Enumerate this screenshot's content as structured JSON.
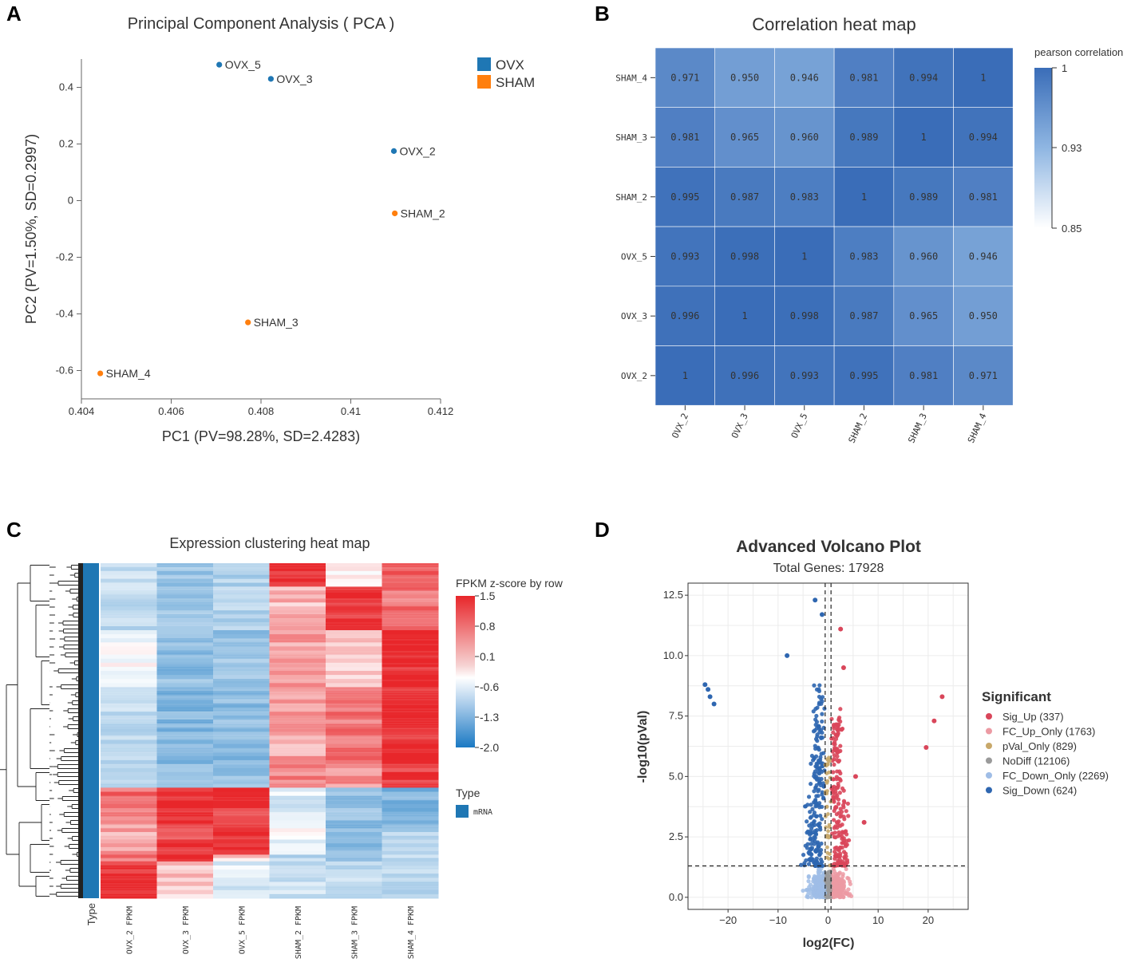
{
  "panels": {
    "a_letter": "A",
    "b_letter": "B",
    "c_letter": "C",
    "d_letter": "D"
  },
  "chart_data": [
    {
      "id": "pca",
      "type": "scatter",
      "title": "Principal Component Analysis ( PCA )",
      "xlabel": "PC1 (PV=98.28%, SD=2.4283)",
      "ylabel": "PC2 (PV=1.50%, SD=0.2997)",
      "xlim": [
        0.404,
        0.412
      ],
      "ylim": [
        -0.7,
        0.5
      ],
      "xticks": [
        0.404,
        0.406,
        0.408,
        0.41,
        0.412
      ],
      "xtick_labels": [
        "0.404",
        "0.406",
        "0.408",
        "0.41",
        "0.412"
      ],
      "yticks": [
        0.4,
        0.2,
        0,
        -0.2,
        -0.4,
        -0.6
      ],
      "ytick_labels": [
        "0.4",
        "0.2",
        "0",
        "-0.2",
        "-0.4",
        "-0.6"
      ],
      "legend": [
        {
          "name": "OVX",
          "color": "#1f77b4"
        },
        {
          "name": "SHAM",
          "color": "#ff7f0e"
        }
      ],
      "points": [
        {
          "label": "OVX_5",
          "group": "OVX",
          "x": 0.40707,
          "y": 0.48
        },
        {
          "label": "OVX_3",
          "group": "OVX",
          "x": 0.40822,
          "y": 0.43
        },
        {
          "label": "OVX_2",
          "group": "OVX",
          "x": 0.41096,
          "y": 0.175
        },
        {
          "label": "SHAM_2",
          "group": "SHAM",
          "x": 0.41098,
          "y": -0.045
        },
        {
          "label": "SHAM_3",
          "group": "SHAM",
          "x": 0.40771,
          "y": -0.43
        },
        {
          "label": "SHAM_4",
          "group": "SHAM",
          "x": 0.40442,
          "y": -0.61
        }
      ]
    },
    {
      "id": "correlation",
      "type": "heatmap",
      "title": "Correlation heat map",
      "colorbar_title": "pearson correlation",
      "colorbar_ticks": [
        "1",
        "0.93",
        "0.85"
      ],
      "colorbar_range": [
        0.85,
        1
      ],
      "x_labels": [
        "OVX_2",
        "OVX_3",
        "OVX_5",
        "SHAM_2",
        "SHAM_3",
        "SHAM_4"
      ],
      "y_labels_top_to_bottom": [
        "SHAM_4",
        "SHAM_3",
        "SHAM_2",
        "OVX_5",
        "OVX_3",
        "OVX_2"
      ],
      "cells": [
        [
          "0.971",
          "0.950",
          "0.946",
          "0.981",
          "0.994",
          "1"
        ],
        [
          "0.981",
          "0.965",
          "0.960",
          "0.989",
          "1",
          "0.994"
        ],
        [
          "0.995",
          "0.987",
          "0.983",
          "1",
          "0.989",
          "0.981"
        ],
        [
          "0.993",
          "0.998",
          "1",
          "0.983",
          "0.960",
          "0.946"
        ],
        [
          "0.996",
          "1",
          "0.998",
          "0.987",
          "0.965",
          "0.950"
        ],
        [
          "1",
          "0.996",
          "0.993",
          "0.995",
          "0.981",
          "0.971"
        ]
      ]
    },
    {
      "id": "clustering",
      "type": "heatmap",
      "title": "Expression clustering heat map",
      "colorbar_title": "FPKM z-score by row",
      "colorbar_ticks": [
        "1.5",
        "0.8",
        "0.1",
        "-0.6",
        "-1.3",
        "-2.0"
      ],
      "colorbar_range": [
        -2.0,
        1.5
      ],
      "type_legend_title": "Type",
      "type_legend_item": "mRNA",
      "type_column_label": "Type",
      "columns": [
        "OVX_2 FPKM",
        "OVX_3 FPKM",
        "OVX_5 FPKM",
        "SHAM_2 FPKM",
        "SHAM_3 FPKM",
        "SHAM_4 FPKM"
      ],
      "blocks": [
        {
          "fraction": 0.07,
          "values": [
            -0.5,
            -0.9,
            -0.7,
            1.4,
            0.1,
            1.1
          ]
        },
        {
          "fraction": 0.13,
          "values": [
            -0.6,
            -0.8,
            -0.6,
            0.5,
            1.4,
            1.0
          ]
        },
        {
          "fraction": 0.17,
          "values": [
            0.0,
            -1.0,
            -0.9,
            0.7,
            0.4,
            1.5
          ]
        },
        {
          "fraction": 0.23,
          "values": [
            -0.6,
            -1.1,
            -1.0,
            0.6,
            1.0,
            1.5
          ]
        },
        {
          "fraction": 0.07,
          "values": [
            -0.8,
            -0.9,
            -1.0,
            0.9,
            0.8,
            1.3
          ]
        },
        {
          "fraction": 0.11,
          "values": [
            1.0,
            1.5,
            1.4,
            -0.3,
            -0.9,
            -1.1
          ]
        },
        {
          "fraction": 0.09,
          "values": [
            0.6,
            1.3,
            1.4,
            -0.1,
            -1.0,
            -0.7
          ]
        },
        {
          "fraction": 0.02,
          "values": [
            0.9,
            1.5,
            0.3,
            -0.6,
            -0.9,
            -0.5
          ]
        },
        {
          "fraction": 0.11,
          "values": [
            1.4,
            0.4,
            -0.3,
            -0.4,
            -0.6,
            -0.5
          ]
        }
      ]
    },
    {
      "id": "volcano",
      "type": "scatter",
      "title": "Advanced Volcano Plot",
      "subtitle": "Total Genes: 17928",
      "xlabel": "log2(FC)",
      "ylabel": "-log10(pVal)",
      "xlim": [
        -28,
        28
      ],
      "ylim": [
        -0.5,
        13
      ],
      "xticks": [
        -20,
        -10,
        0,
        10,
        20
      ],
      "xtick_labels": [
        "−20",
        "−10",
        "0",
        "10",
        "20"
      ],
      "yticks": [
        0.0,
        2.5,
        5.0,
        7.5,
        10.0,
        12.5
      ],
      "ytick_labels": [
        "0.0",
        "2.5",
        "5.0",
        "7.5",
        "10.0",
        "12.5"
      ],
      "thresholds": {
        "fc": [
          -0.585,
          0.585
        ],
        "pval": 1.3
      },
      "legend_title": "Significant",
      "legend": [
        {
          "name": "Sig_Up (337)",
          "color": "#d9465a"
        },
        {
          "name": "FC_Up_Only (1763)",
          "color": "#ec9aa3"
        },
        {
          "name": "pVal_Only (829)",
          "color": "#c8a86a"
        },
        {
          "name": "NoDiff (12106)",
          "color": "#9a9a9a"
        },
        {
          "name": "FC_Down_Only (2269)",
          "color": "#9fbde6"
        },
        {
          "name": "Sig_Down (624)",
          "color": "#2e66b0"
        }
      ],
      "outliers": [
        {
          "x": -24.6,
          "y": 8.8,
          "g": "down"
        },
        {
          "x": -24.0,
          "y": 8.6,
          "g": "down"
        },
        {
          "x": -23.6,
          "y": 8.3,
          "g": "down"
        },
        {
          "x": -22.8,
          "y": 8.0,
          "g": "down"
        },
        {
          "x": -8.2,
          "y": 10.0,
          "g": "down"
        },
        {
          "x": -2.6,
          "y": 12.3,
          "g": "down"
        },
        {
          "x": -1.2,
          "y": 11.7,
          "g": "down"
        },
        {
          "x": 2.5,
          "y": 11.1,
          "g": "up"
        },
        {
          "x": 3.1,
          "y": 9.5,
          "g": "up"
        },
        {
          "x": 22.8,
          "y": 8.3,
          "g": "up"
        },
        {
          "x": 21.2,
          "y": 7.3,
          "g": "up"
        },
        {
          "x": 19.6,
          "y": 6.2,
          "g": "up"
        },
        {
          "x": 5.5,
          "y": 5.0,
          "g": "up"
        },
        {
          "x": 7.2,
          "y": 3.1,
          "g": "up"
        }
      ]
    }
  ]
}
